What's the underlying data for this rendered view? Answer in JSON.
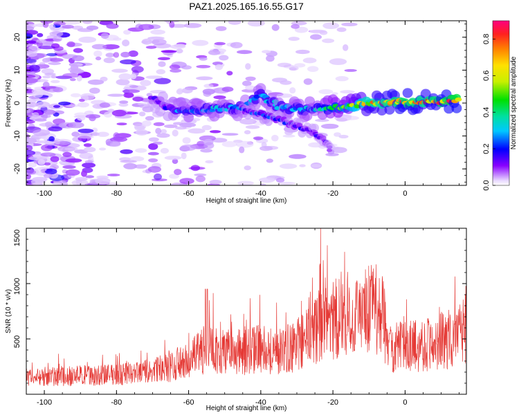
{
  "title": "PAZ1.2025.165.16.55.G17",
  "chart_data": [
    {
      "type": "heatmap",
      "xlabel": "Height of straight line (km)",
      "ylabel": "Frequency (Hz)",
      "xlim": [
        -105,
        17
      ],
      "ylim": [
        -25,
        25
      ],
      "xticks": [
        -100,
        -80,
        -60,
        -40,
        -20,
        0
      ],
      "yticks": [
        -20,
        -10,
        0,
        10,
        20
      ],
      "colorbar": {
        "label": "Normalized spectral amplitude",
        "range": [
          0,
          0.9
        ],
        "ticks": [
          0.0,
          0.2,
          0.4,
          0.6,
          0.8
        ],
        "colormap": "rainbow"
      },
      "ridge": [
        {
          "x": -70,
          "y": 1.5,
          "amp": 0.12
        },
        {
          "x": -65,
          "y": -2,
          "amp": 0.22
        },
        {
          "x": -60,
          "y": -2.5,
          "amp": 0.3
        },
        {
          "x": -55,
          "y": -2,
          "amp": 0.3
        },
        {
          "x": -50,
          "y": -1.5,
          "amp": 0.28
        },
        {
          "x": -45,
          "y": -1.5,
          "amp": 0.26
        },
        {
          "x": -40,
          "y": 2.5,
          "amp": 0.28
        },
        {
          "x": -35,
          "y": -1,
          "amp": 0.28
        },
        {
          "x": -30,
          "y": -1.8,
          "amp": 0.3
        },
        {
          "x": -25,
          "y": -2,
          "amp": 0.3
        },
        {
          "x": -20,
          "y": -1.5,
          "amp": 0.4
        },
        {
          "x": -15,
          "y": -0.8,
          "amp": 0.5
        },
        {
          "x": -10,
          "y": 0,
          "amp": 0.65
        },
        {
          "x": -5,
          "y": 0.2,
          "amp": 0.7
        },
        {
          "x": 0,
          "y": 0.5,
          "amp": 0.75
        },
        {
          "x": 5,
          "y": 0.4,
          "amp": 0.7
        },
        {
          "x": 10,
          "y": 0.5,
          "amp": 0.75
        },
        {
          "x": 15,
          "y": 0.8,
          "amp": 0.8
        }
      ],
      "branch": [
        {
          "x": -45,
          "y": -2,
          "amp": 0.2
        },
        {
          "x": -40,
          "y": -3.5,
          "amp": 0.22
        },
        {
          "x": -35,
          "y": -5,
          "amp": 0.2
        },
        {
          "x": -30,
          "y": -7,
          "amp": 0.18
        },
        {
          "x": -25,
          "y": -9,
          "amp": 0.15
        },
        {
          "x": -22,
          "y": -12,
          "amp": 0.15
        },
        {
          "x": -20,
          "y": -15,
          "amp": 0.06
        }
      ]
    },
    {
      "type": "line",
      "xlabel": "Height of straight line (km)",
      "ylabel": "SNR (10 * v/v)",
      "xlim": [
        -105,
        17
      ],
      "ylim": [
        0,
        1500
      ],
      "xticks": [
        -100,
        -80,
        -60,
        -40,
        -20,
        0
      ],
      "yticks": [
        500,
        1000,
        1500
      ],
      "color": "#e53935",
      "series": [
        {
          "x": [
            -105,
            -100,
            -95,
            -90,
            -85,
            -80,
            -75,
            -70,
            -65,
            -60,
            -55,
            -50,
            -45,
            -40,
            -35,
            -30,
            -25,
            -23,
            -20,
            -18,
            -15,
            -12,
            -10,
            -6,
            -5,
            -3,
            0,
            5,
            10,
            15,
            17
          ],
          "values": [
            150,
            160,
            160,
            170,
            170,
            180,
            190,
            210,
            240,
            300,
            420,
            380,
            380,
            420,
            380,
            440,
            560,
            700,
            650,
            720,
            720,
            700,
            760,
            720,
            420,
            430,
            430,
            450,
            480,
            520,
            560
          ]
        }
      ]
    }
  ]
}
